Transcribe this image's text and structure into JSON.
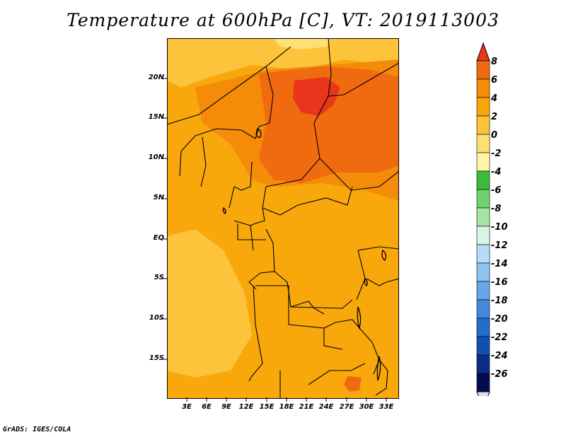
{
  "title": "Temperature at 600hPa [C], VT: 2019113003",
  "credit": "GrADS: IGES/COLA",
  "lat_ticks": [
    "20N",
    "15N",
    "10N",
    "5N",
    "EQ",
    "5S",
    "10S",
    "15S"
  ],
  "lon_ticks": [
    "3E",
    "6E",
    "9E",
    "12E",
    "15E",
    "18E",
    "21E",
    "24E",
    "27E",
    "30E",
    "33E"
  ],
  "colorbar": {
    "labels": [
      "8",
      "6",
      "4",
      "2",
      "0",
      "-2",
      "-4",
      "-6",
      "-8",
      "-10",
      "-12",
      "-14",
      "-16",
      "-18",
      "-20",
      "-22",
      "-24",
      "-26"
    ],
    "colors": [
      "#e8351c",
      "#f06a10",
      "#f48b09",
      "#f8a80b",
      "#fcc33b",
      "#fde073",
      "#fdf5a8",
      "#3dbb3d",
      "#6ed36e",
      "#a3e6a3",
      "#d6f5e6",
      "#b7dcf7",
      "#8fc2ef",
      "#69a6e6",
      "#4489db",
      "#256ccc",
      "#1150b3",
      "#0b2d86",
      "#050b50",
      "#dcdcf3"
    ]
  },
  "palette": {
    "base": "#f8a80b",
    "warm": "#f48b09",
    "hot": "#f06a10",
    "hottest": "#e8351c",
    "cool": "#fcc33b",
    "coolest": "#fde073"
  }
}
